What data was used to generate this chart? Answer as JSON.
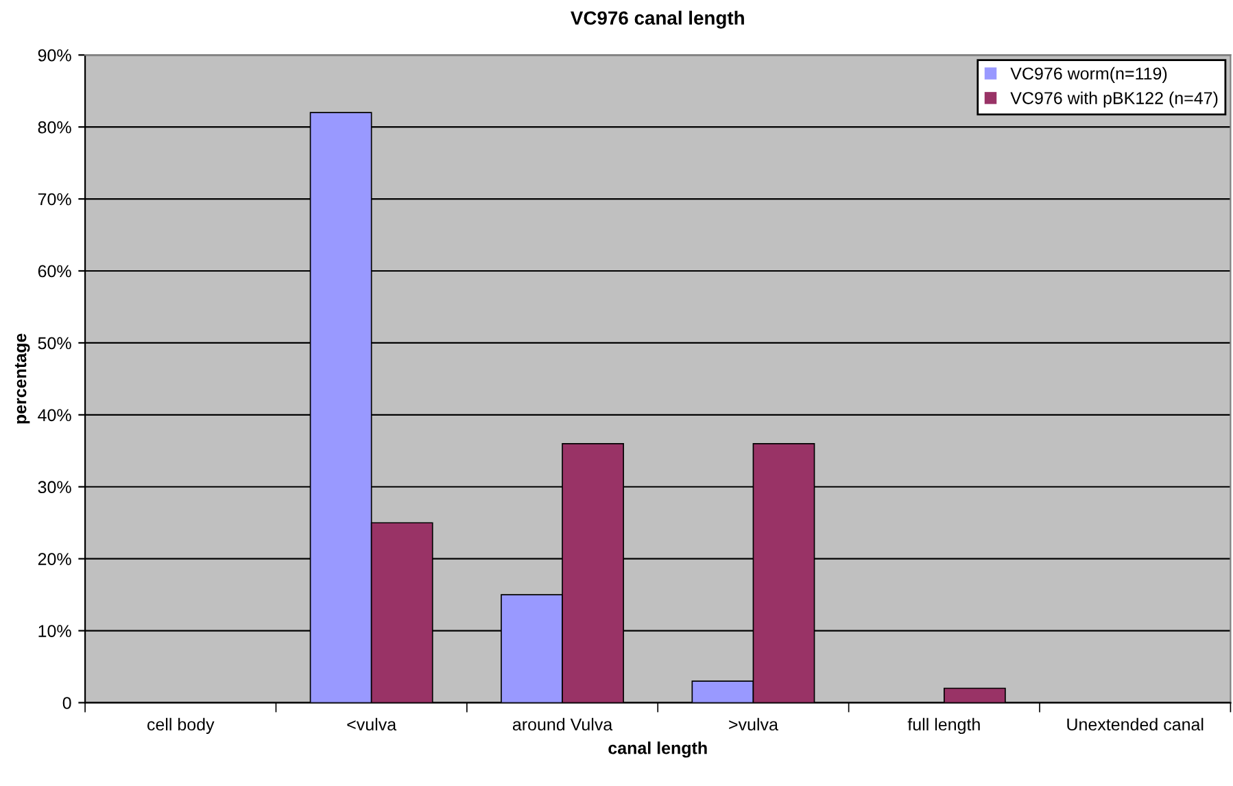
{
  "chart_data": {
    "type": "bar",
    "title": "VC976 canal length",
    "xlabel": "canal length",
    "ylabel": "percentage",
    "categories": [
      "cell body",
      "<vulva",
      "around Vulva",
      ">vulva",
      "full length",
      "Unextended canal"
    ],
    "series": [
      {
        "name": "VC976 worm(n=119)",
        "color": "#9999ff",
        "values": [
          0,
          82,
          15,
          3,
          0,
          0
        ]
      },
      {
        "name": "VC976 with pBK122 (n=47)",
        "color": "#993366",
        "values": [
          0,
          25,
          36,
          36,
          2,
          0
        ]
      }
    ],
    "ylim": [
      0,
      90
    ],
    "yticks": [
      0,
      {
        "value": 10,
        "label": "10%"
      },
      {
        "value": 20,
        "label": "20%"
      },
      {
        "value": 30,
        "label": "30%"
      },
      {
        "value": 40,
        "label": "40%"
      },
      {
        "value": 50,
        "label": "50%"
      },
      {
        "value": 60,
        "label": "60%"
      },
      {
        "value": 70,
        "label": "70%"
      },
      {
        "value": 80,
        "label": "80%"
      },
      {
        "value": 90,
        "label": "90%"
      }
    ],
    "grid": "y",
    "legend": "top right"
  }
}
